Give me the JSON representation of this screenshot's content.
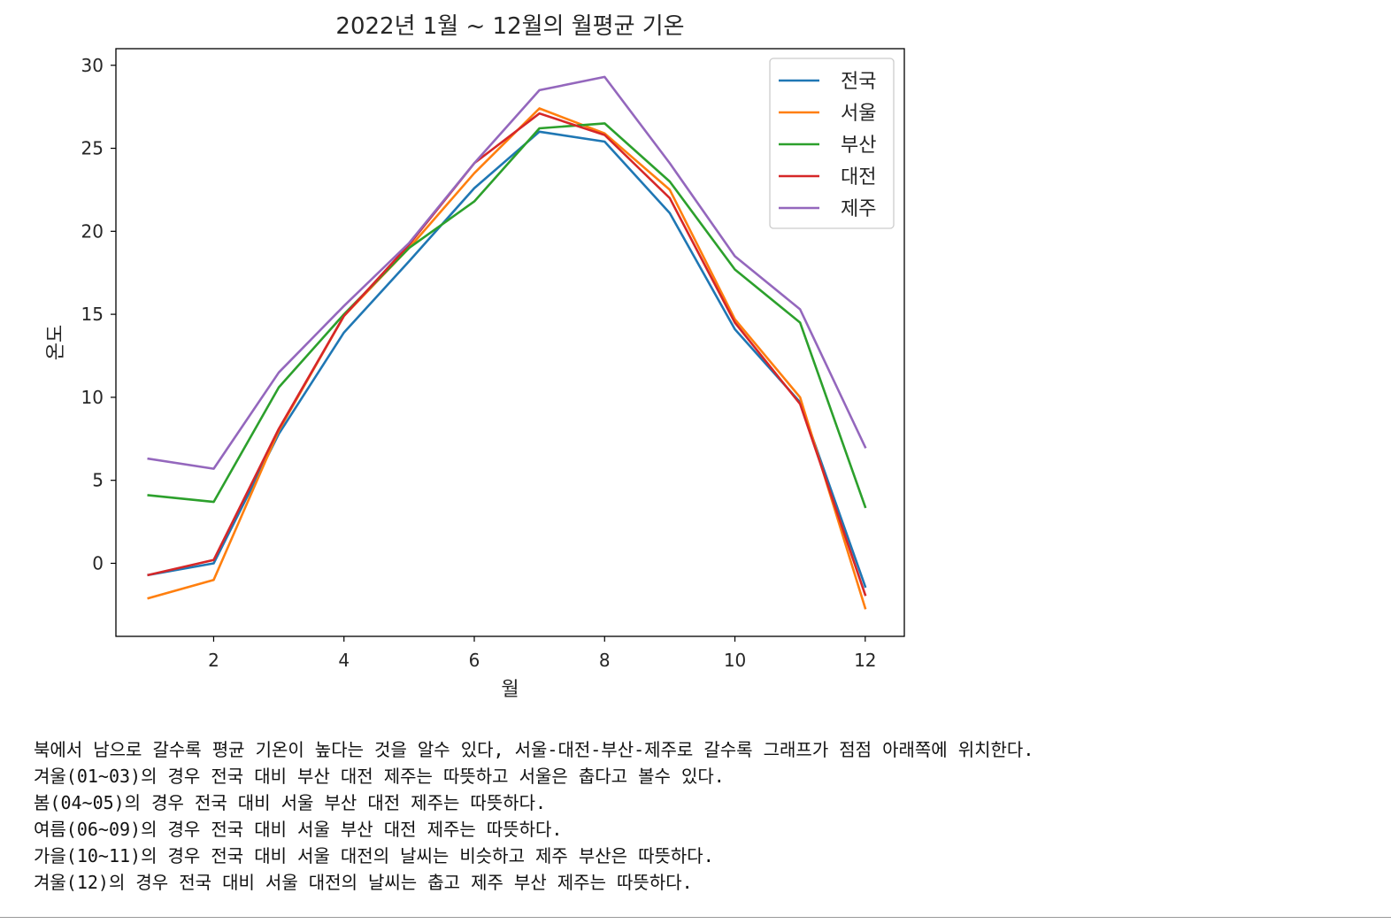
{
  "chart_data": {
    "type": "line",
    "title": "2022년 1월 ~ 12월의 월평균 기온",
    "xlabel": "월",
    "ylabel": "온도",
    "xlim": [
      0.5,
      12.6
    ],
    "ylim": [
      -4.4,
      31
    ],
    "xticks": [
      2,
      4,
      6,
      8,
      10,
      12
    ],
    "yticks": [
      0,
      5,
      10,
      15,
      20,
      25,
      30
    ],
    "grid": false,
    "legend": "top-right",
    "x": [
      1,
      2,
      3,
      4,
      5,
      6,
      7,
      8,
      9,
      10,
      11,
      12
    ],
    "series": [
      {
        "name": "전국",
        "color": "#1f77b4",
        "values": [
          -0.7,
          0.0,
          7.8,
          13.9,
          18.2,
          22.6,
          26.0,
          25.4,
          21.1,
          14.1,
          9.7,
          -1.4
        ]
      },
      {
        "name": "서울",
        "color": "#ff7f0e",
        "values": [
          -2.1,
          -1.0,
          8.0,
          14.9,
          19.0,
          23.5,
          27.4,
          25.9,
          22.5,
          14.7,
          10.0,
          -2.7
        ]
      },
      {
        "name": "부산",
        "color": "#2ca02c",
        "values": [
          4.1,
          3.7,
          10.6,
          15.0,
          19.0,
          21.8,
          26.2,
          26.5,
          23.0,
          17.7,
          14.5,
          3.4
        ]
      },
      {
        "name": "대전",
        "color": "#d62728",
        "values": [
          -0.7,
          0.2,
          8.1,
          14.9,
          19.2,
          24.1,
          27.1,
          25.8,
          22.0,
          14.5,
          9.6,
          -1.9
        ]
      },
      {
        "name": "제주",
        "color": "#9467bd",
        "values": [
          6.3,
          5.7,
          11.5,
          15.5,
          19.3,
          24.1,
          28.5,
          29.3,
          24.1,
          18.5,
          15.3,
          7.0
        ]
      }
    ]
  },
  "notes": [
    "북에서 남으로 갈수록 평균 기온이 높다는 것을 알수 있다, 서울-대전-부산-제주로 갈수록 그래프가 점점 아래쪽에 위치한다.",
    "겨울(01~03)의 경우 전국 대비 부산 대전 제주는 따뜻하고 서울은 춥다고 볼수 있다.",
    "봄(04~05)의 경우 전국 대비 서울 부산 대전 제주는 따뜻하다.",
    "여름(06~09)의 경우 전국 대비 서울 부산 대전 제주는 따뜻하다.",
    "가을(10~11)의 경우 전국 대비 서울 대전의 날씨는 비슷하고 제주 부산은 따뜻하다.",
    "겨울(12)의 경우 전국 대비 서울 대전의 날씨는 춥고 제주 부산 제주는 따뜻하다."
  ]
}
